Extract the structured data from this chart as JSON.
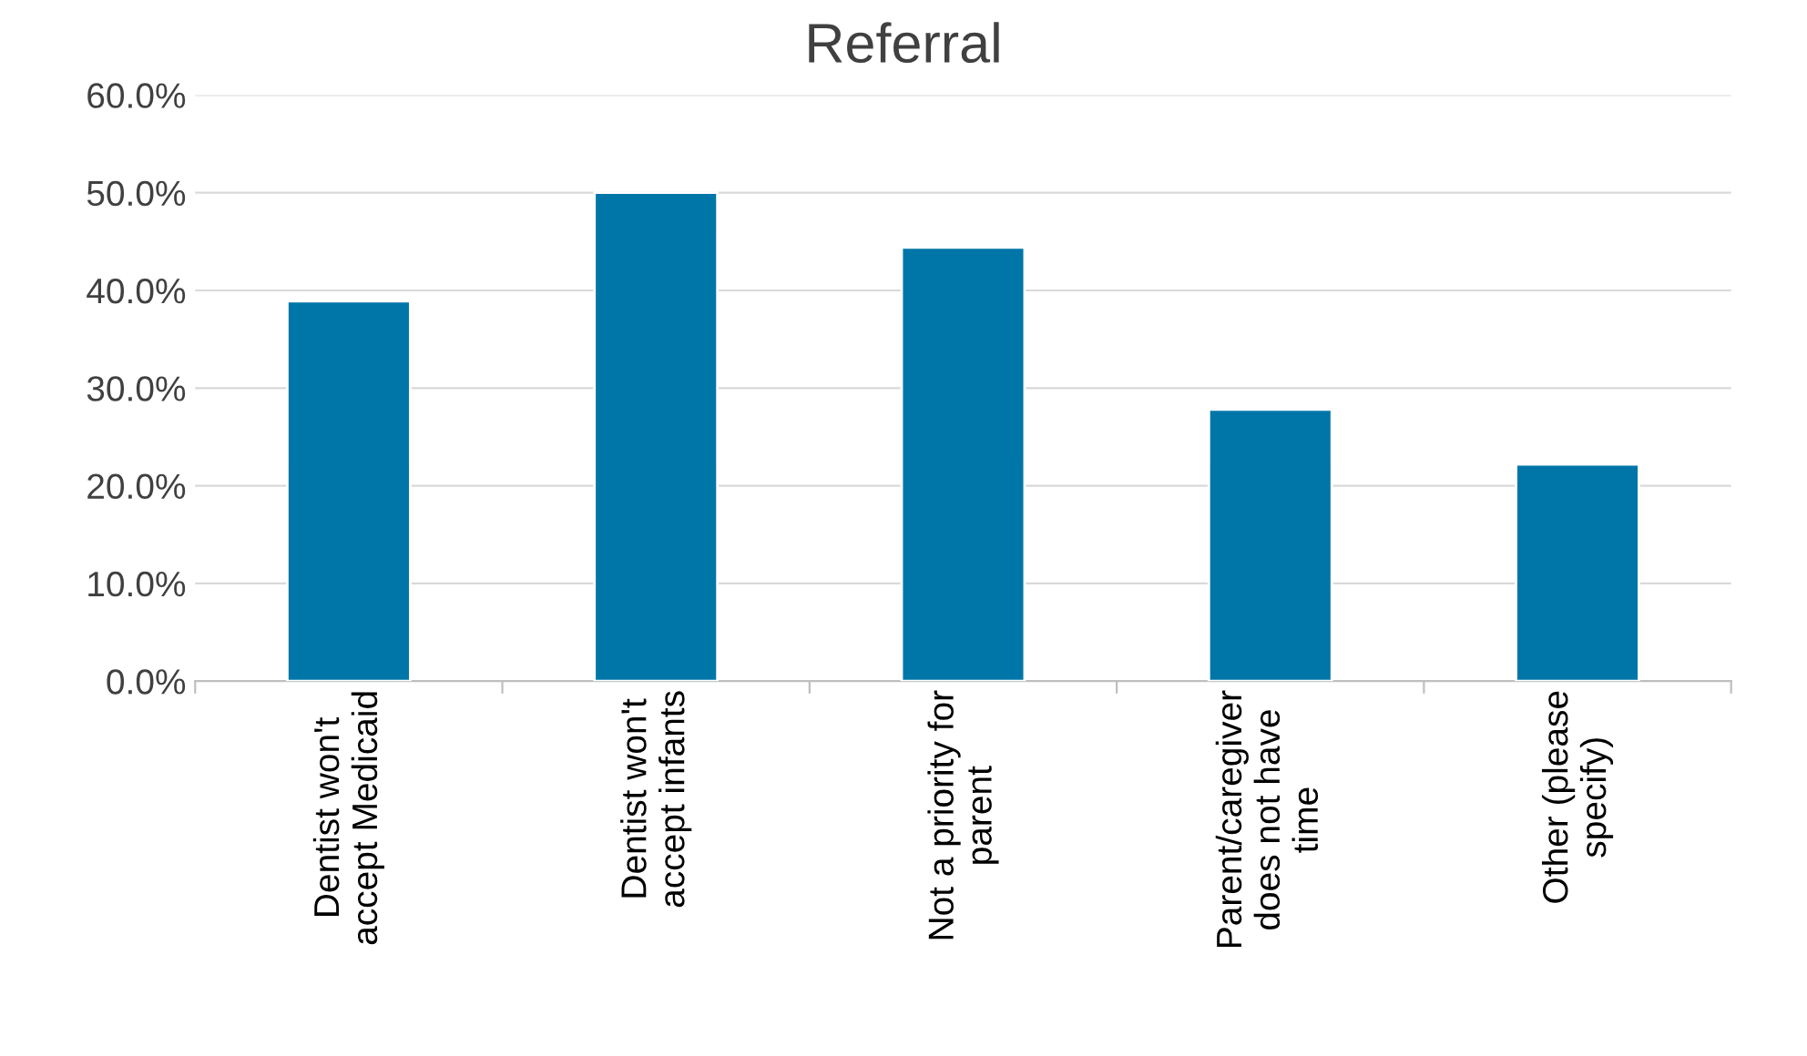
{
  "chart_data": {
    "type": "bar",
    "title": "Referral",
    "categories": [
      "Dentist won't\naccept Medicaid",
      "Dentist won't\naccept infants",
      "Not a priority for\nparent",
      "Parent/caregiver\ndoes not have\ntime",
      "Other (please\nspecify)"
    ],
    "values": [
      38.9,
      50.0,
      44.4,
      27.8,
      22.2
    ],
    "color": "#0076a8",
    "ylim": [
      0,
      60
    ],
    "yticks": [
      {
        "value": 0,
        "label": "0.0%"
      },
      {
        "value": 10,
        "label": "10.0%"
      },
      {
        "value": 20,
        "label": "20.0%"
      },
      {
        "value": 30,
        "label": "30.0%"
      },
      {
        "value": 40,
        "label": "40.0%"
      },
      {
        "value": 50,
        "label": "50.0%"
      },
      {
        "value": 60,
        "label": "60.0%"
      }
    ],
    "grid": "y",
    "legend": false
  }
}
